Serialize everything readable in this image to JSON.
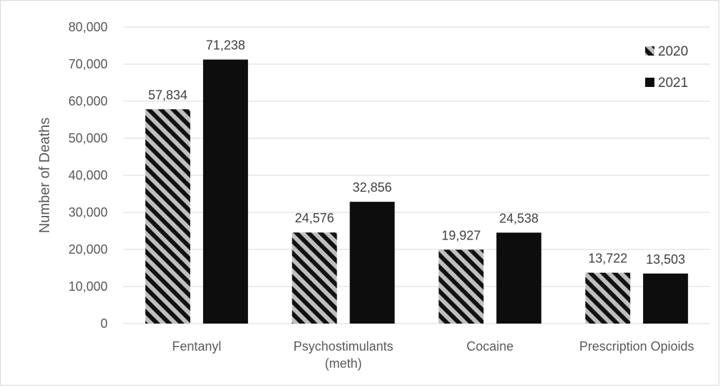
{
  "chart_data": {
    "type": "bar",
    "title": "",
    "xlabel": "",
    "ylabel": "Number of Deaths",
    "ylim": [
      0,
      80000
    ],
    "yticks": [
      0,
      10000,
      20000,
      30000,
      40000,
      50000,
      60000,
      70000,
      80000
    ],
    "ytick_labels": [
      "0",
      "10,000",
      "20,000",
      "30,000",
      "40,000",
      "50,000",
      "60,000",
      "70,000",
      "80,000"
    ],
    "grid": true,
    "legend_position": "top-right",
    "categories": [
      [
        "Fentanyl"
      ],
      [
        "Psychostimulants",
        "(meth)"
      ],
      [
        "Cocaine"
      ],
      [
        "Prescription Opioids"
      ]
    ],
    "series": [
      {
        "name": "2020",
        "pattern": "diagonal-stripes",
        "color": "#111111",
        "values": [
          57834,
          24576,
          19927,
          13722
        ],
        "labels": [
          "57,834",
          "24,576",
          "19,927",
          "13,722"
        ]
      },
      {
        "name": "2021",
        "pattern": "solid",
        "color": "#0d0d0d",
        "values": [
          71238,
          32856,
          24538,
          13503
        ],
        "labels": [
          "71,238",
          "32,856",
          "24,538",
          "13,503"
        ]
      }
    ],
    "colors": {
      "gridline": "#d9d9d9",
      "axis_text": "#595959",
      "stripe_light": "#bfbfbf"
    }
  }
}
